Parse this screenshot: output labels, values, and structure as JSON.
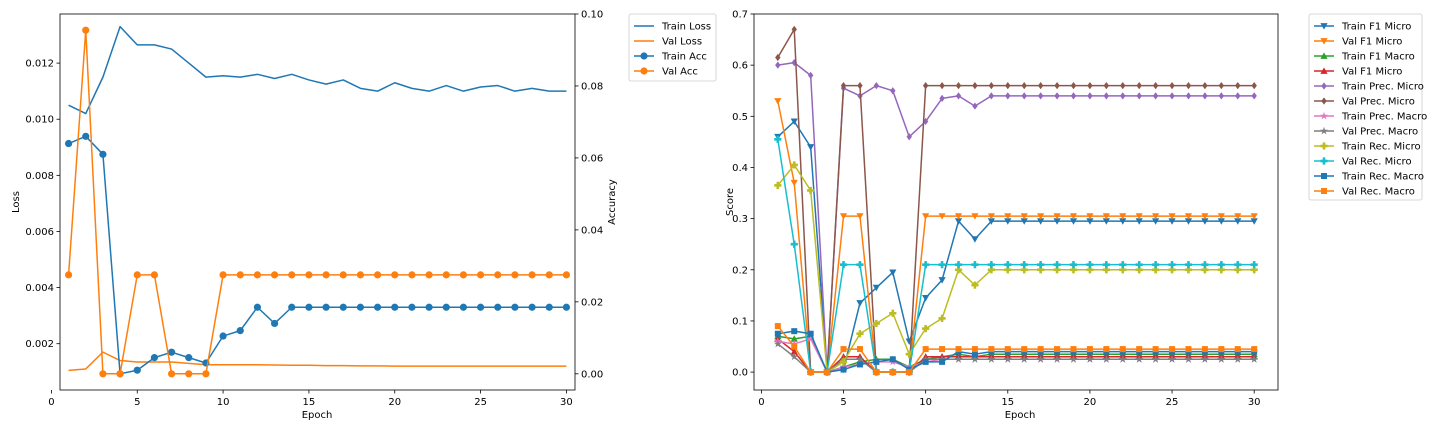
{
  "colors": {
    "blue": "#1f77b4",
    "orange": "#ff7f0e",
    "green": "#2ca02c",
    "red": "#d62728",
    "purple": "#9467bd",
    "brown": "#8c564b",
    "pink": "#e377c2",
    "gray": "#7f7f7f",
    "olive": "#bcbd22",
    "cyan": "#17becf"
  },
  "chart_data": [
    {
      "type": "line",
      "xlabel": "Epoch",
      "ylabel": "Loss",
      "ylabel_right": "Accuracy",
      "xlim": [
        0.5,
        30.5
      ],
      "ylim": [
        0.00035,
        0.01375
      ],
      "ylim_right": [
        -0.0045,
        0.1
      ],
      "xticks": [
        "0",
        "5",
        "10",
        "15",
        "20",
        "25",
        "30"
      ],
      "yticks": [
        "0.002",
        "0.004",
        "0.006",
        "0.008",
        "0.010",
        "0.012"
      ],
      "yticks_right": [
        "0.00",
        "0.02",
        "0.04",
        "0.06",
        "0.08",
        "0.10"
      ],
      "grid": false,
      "legend_position": "outside-right-top",
      "x": [
        1,
        2,
        3,
        4,
        5,
        6,
        7,
        8,
        9,
        10,
        11,
        12,
        13,
        14,
        15,
        16,
        17,
        18,
        19,
        20,
        21,
        22,
        23,
        24,
        25,
        26,
        27,
        28,
        29,
        30
      ],
      "series": [
        {
          "name": "Train Loss",
          "axis": "left",
          "color": "blue",
          "marker": "none",
          "values": [
            0.0105,
            0.0102,
            0.0115,
            0.0133,
            0.01265,
            0.01265,
            0.0125,
            0.012,
            0.0115,
            0.01155,
            0.0115,
            0.0116,
            0.01145,
            0.0116,
            0.0114,
            0.01125,
            0.0114,
            0.0111,
            0.011,
            0.0113,
            0.0111,
            0.011,
            0.0112,
            0.011,
            0.01115,
            0.0112,
            0.011,
            0.0111,
            0.011,
            0.011
          ]
        },
        {
          "name": "Val Loss",
          "axis": "left",
          "color": "orange",
          "marker": "none",
          "values": [
            0.00105,
            0.0011,
            0.0017,
            0.0014,
            0.00135,
            0.00135,
            0.00135,
            0.0013,
            0.00125,
            0.00125,
            0.00125,
            0.00125,
            0.00124,
            0.00123,
            0.00123,
            0.00122,
            0.00122,
            0.00121,
            0.00121,
            0.0012,
            0.0012,
            0.0012,
            0.0012,
            0.0012,
            0.0012,
            0.0012,
            0.0012,
            0.0012,
            0.0012,
            0.0012
          ]
        },
        {
          "name": "Train Acc",
          "axis": "right",
          "color": "blue",
          "marker": "circle",
          "values": [
            0.064,
            0.066,
            0.061,
            0.0,
            0.001,
            0.0045,
            0.006,
            0.0045,
            0.003,
            0.0105,
            0.012,
            0.0185,
            0.014,
            0.0185,
            0.0185,
            0.0185,
            0.0185,
            0.0185,
            0.0185,
            0.0185,
            0.0185,
            0.0185,
            0.0185,
            0.0185,
            0.0185,
            0.0185,
            0.0185,
            0.0185,
            0.0185,
            0.0185
          ]
        },
        {
          "name": "Val Acc",
          "axis": "right",
          "color": "orange",
          "marker": "circle",
          "values": [
            0.0275,
            0.0955,
            0.0,
            0.0,
            0.0275,
            0.0275,
            0.0,
            0.0,
            0.0,
            0.0275,
            0.0275,
            0.0275,
            0.0275,
            0.0275,
            0.0275,
            0.0275,
            0.0275,
            0.0275,
            0.0275,
            0.0275,
            0.0275,
            0.0275,
            0.0275,
            0.0275,
            0.0275,
            0.0275,
            0.0275,
            0.0275,
            0.0275,
            0.0275
          ]
        }
      ]
    },
    {
      "type": "line",
      "xlabel": "Epoch",
      "ylabel": "Score",
      "xlim": [
        -0.45,
        31.45
      ],
      "ylim": [
        -0.035,
        0.7
      ],
      "xticks": [
        "0",
        "5",
        "10",
        "15",
        "20",
        "25",
        "30"
      ],
      "yticks": [
        "0.0",
        "0.1",
        "0.2",
        "0.3",
        "0.4",
        "0.5",
        "0.6",
        "0.7"
      ],
      "grid": false,
      "legend_position": "outside-right-top",
      "x": [
        1,
        2,
        3,
        4,
        5,
        6,
        7,
        8,
        9,
        10,
        11,
        12,
        13,
        14,
        15,
        16,
        17,
        18,
        19,
        20,
        21,
        22,
        23,
        24,
        25,
        26,
        27,
        28,
        29,
        30
      ],
      "series": [
        {
          "name": "Train F1 Micro",
          "color": "blue",
          "marker": "triangle-down",
          "values": [
            0.46,
            0.49,
            0.44,
            0.0,
            0.005,
            0.135,
            0.165,
            0.195,
            0.06,
            0.145,
            0.18,
            0.295,
            0.26,
            0.295,
            0.295,
            0.295,
            0.295,
            0.295,
            0.295,
            0.295,
            0.295,
            0.295,
            0.295,
            0.295,
            0.295,
            0.295,
            0.295,
            0.295,
            0.295,
            0.295
          ]
        },
        {
          "name": "Val F1 Micro",
          "color": "orange",
          "marker": "triangle-down",
          "values": [
            0.53,
            0.37,
            0.0,
            0.0,
            0.305,
            0.305,
            0.0,
            0.0,
            0.0,
            0.305,
            0.305,
            0.305,
            0.305,
            0.305,
            0.305,
            0.305,
            0.305,
            0.305,
            0.305,
            0.305,
            0.305,
            0.305,
            0.305,
            0.305,
            0.305,
            0.305,
            0.305,
            0.305,
            0.305,
            0.305
          ]
        },
        {
          "name": "Train F1 Macro",
          "color": "green",
          "marker": "triangle-up",
          "values": [
            0.07,
            0.065,
            0.07,
            0.0,
            0.01,
            0.02,
            0.025,
            0.025,
            0.01,
            0.025,
            0.03,
            0.035,
            0.03,
            0.035,
            0.035,
            0.035,
            0.035,
            0.035,
            0.035,
            0.035,
            0.035,
            0.035,
            0.035,
            0.035,
            0.035,
            0.035,
            0.035,
            0.035,
            0.035,
            0.035
          ]
        },
        {
          "name": "Val F1 Micro",
          "color": "red",
          "marker": "triangle-up",
          "values": [
            0.065,
            0.04,
            0.0,
            0.0,
            0.03,
            0.03,
            0.0,
            0.0,
            0.0,
            0.03,
            0.03,
            0.03,
            0.03,
            0.03,
            0.03,
            0.03,
            0.03,
            0.03,
            0.03,
            0.03,
            0.03,
            0.03,
            0.03,
            0.03,
            0.03,
            0.03,
            0.03,
            0.03,
            0.03,
            0.03
          ]
        },
        {
          "name": "Train Prec. Micro",
          "color": "purple",
          "marker": "diamond",
          "values": [
            0.6,
            0.605,
            0.58,
            0.0,
            0.555,
            0.54,
            0.56,
            0.55,
            0.46,
            0.49,
            0.535,
            0.54,
            0.52,
            0.54,
            0.54,
            0.54,
            0.54,
            0.54,
            0.54,
            0.54,
            0.54,
            0.54,
            0.54,
            0.54,
            0.54,
            0.54,
            0.54,
            0.54,
            0.54,
            0.54
          ]
        },
        {
          "name": "Val Prec. Micro",
          "color": "brown",
          "marker": "diamond",
          "values": [
            0.615,
            0.67,
            0.0,
            0.0,
            0.56,
            0.56,
            0.0,
            0.0,
            0.0,
            0.56,
            0.56,
            0.56,
            0.56,
            0.56,
            0.56,
            0.56,
            0.56,
            0.56,
            0.56,
            0.56,
            0.56,
            0.56,
            0.56,
            0.56,
            0.56,
            0.56,
            0.56,
            0.56,
            0.56,
            0.56
          ]
        },
        {
          "name": "Train Prec. Macro",
          "color": "pink",
          "marker": "star",
          "values": [
            0.06,
            0.055,
            0.065,
            0.0,
            0.01,
            0.015,
            0.02,
            0.02,
            0.01,
            0.02,
            0.025,
            0.025,
            0.025,
            0.025,
            0.025,
            0.025,
            0.025,
            0.025,
            0.025,
            0.025,
            0.025,
            0.025,
            0.025,
            0.025,
            0.025,
            0.025,
            0.025,
            0.025,
            0.025,
            0.025
          ]
        },
        {
          "name": "Val Prec. Macro",
          "color": "gray",
          "marker": "star",
          "values": [
            0.055,
            0.03,
            0.0,
            0.0,
            0.025,
            0.025,
            0.0,
            0.0,
            0.0,
            0.025,
            0.025,
            0.025,
            0.025,
            0.025,
            0.025,
            0.025,
            0.025,
            0.025,
            0.025,
            0.025,
            0.025,
            0.025,
            0.025,
            0.025,
            0.025,
            0.025,
            0.025,
            0.025,
            0.025,
            0.025
          ]
        },
        {
          "name": "Train Rec. Micro",
          "color": "olive",
          "marker": "plus",
          "values": [
            0.365,
            0.405,
            0.355,
            0.0,
            0.02,
            0.075,
            0.095,
            0.115,
            0.035,
            0.085,
            0.105,
            0.2,
            0.17,
            0.2,
            0.2,
            0.2,
            0.2,
            0.2,
            0.2,
            0.2,
            0.2,
            0.2,
            0.2,
            0.2,
            0.2,
            0.2,
            0.2,
            0.2,
            0.2,
            0.2
          ]
        },
        {
          "name": "Val Rec. Micro",
          "color": "cyan",
          "marker": "plus",
          "values": [
            0.455,
            0.25,
            0.0,
            0.0,
            0.21,
            0.21,
            0.0,
            0.0,
            0.0,
            0.21,
            0.21,
            0.21,
            0.21,
            0.21,
            0.21,
            0.21,
            0.21,
            0.21,
            0.21,
            0.21,
            0.21,
            0.21,
            0.21,
            0.21,
            0.21,
            0.21,
            0.21,
            0.21,
            0.21,
            0.21
          ]
        },
        {
          "name": "Train Rec. Macro",
          "color": "blue",
          "marker": "square",
          "values": [
            0.075,
            0.08,
            0.075,
            0.0,
            0.005,
            0.015,
            0.02,
            0.025,
            0.005,
            0.02,
            0.02,
            0.04,
            0.035,
            0.04,
            0.04,
            0.04,
            0.04,
            0.04,
            0.04,
            0.04,
            0.04,
            0.04,
            0.04,
            0.04,
            0.04,
            0.04,
            0.04,
            0.04,
            0.04,
            0.04
          ]
        },
        {
          "name": "Val Rec. Macro",
          "color": "orange",
          "marker": "square",
          "values": [
            0.09,
            0.05,
            0.0,
            0.0,
            0.045,
            0.045,
            0.0,
            0.0,
            0.0,
            0.045,
            0.045,
            0.045,
            0.045,
            0.045,
            0.045,
            0.045,
            0.045,
            0.045,
            0.045,
            0.045,
            0.045,
            0.045,
            0.045,
            0.045,
            0.045,
            0.045,
            0.045,
            0.045,
            0.045,
            0.045
          ]
        }
      ]
    }
  ]
}
